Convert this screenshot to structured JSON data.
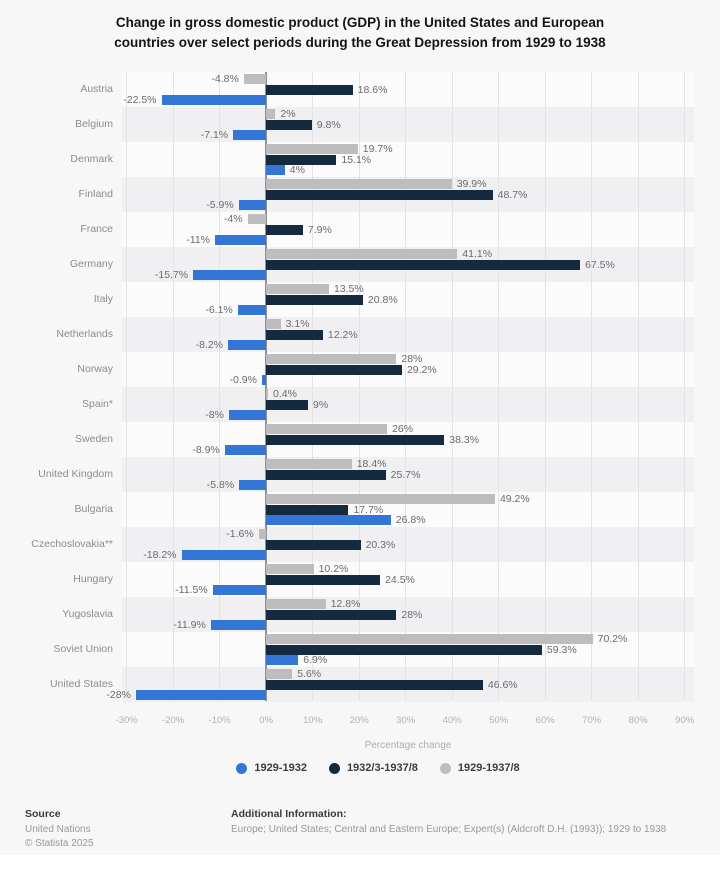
{
  "title": {
    "line1": "Change in gross domestic product (GDP) in the United States and European",
    "line2": "countries over select periods during the Great Depression from 1929 to 1938"
  },
  "chart_data": {
    "type": "bar",
    "orientation": "horizontal",
    "title": "Change in gross domestic product (GDP) in the United States and European countries over select periods during the Great Depression from 1929 to 1938",
    "xlabel": "Percentage change",
    "xlim": [
      -31,
      92
    ],
    "x_ticks": [
      "-30%",
      "-20%",
      "-10%",
      "0%",
      "10%",
      "20%",
      "30%",
      "40%",
      "50%",
      "60%",
      "70%",
      "80%",
      "90%"
    ],
    "tick_values": [
      -30,
      -20,
      -10,
      0,
      10,
      20,
      30,
      40,
      50,
      60,
      70,
      80,
      90
    ],
    "grid": true,
    "legend_position": "bottom",
    "categories": [
      "Austria",
      "Belgium",
      "Denmark",
      "Finland",
      "France",
      "Germany",
      "Italy",
      "Netherlands",
      "Norway",
      "Spain*",
      "Sweden",
      "United Kingdom",
      "Bulgaria",
      "Czechoslovakia**",
      "Hungary",
      "Yugoslavia",
      "Soviet Union",
      "United States"
    ],
    "series": [
      {
        "name": "1929-1932",
        "color": "#3376d6",
        "values": [
          -22.5,
          -7.1,
          4,
          -5.9,
          -11,
          -15.7,
          -6.1,
          -8.2,
          -0.9,
          -8,
          -8.9,
          -5.8,
          26.8,
          -18.2,
          -11.5,
          -11.9,
          6.9,
          -28
        ]
      },
      {
        "name": "1932/3-1937/8",
        "color": "#15293f",
        "values": [
          18.6,
          9.8,
          15.1,
          48.7,
          7.9,
          67.5,
          20.8,
          12.2,
          29.2,
          9,
          38.3,
          25.7,
          17.7,
          20.3,
          24.5,
          28,
          59.3,
          46.6
        ]
      },
      {
        "name": "1929-1937/8",
        "color": "#bdbdbf",
        "values": [
          -4.8,
          2,
          19.7,
          39.9,
          -4,
          41.1,
          13.5,
          3.1,
          28,
          0.4,
          26,
          18.4,
          49.2,
          -1.6,
          10.2,
          12.8,
          70.2,
          5.6
        ]
      }
    ],
    "row_display_order_note": "per category, bars shown top-to-bottom: 1929-1937/8 (gray), 1932/3-1937/8 (navy), 1929-1932 (blue)"
  },
  "footer": {
    "source_heading": "Source",
    "source_name": "United Nations",
    "copyright": "© Statista 2025",
    "additional_heading": "Additional Information:",
    "additional_text": "Europe; United States; Central and Eastern Europe; Expert(s) (Aldcroft D.H. (1993)); 1929 to 1938"
  }
}
